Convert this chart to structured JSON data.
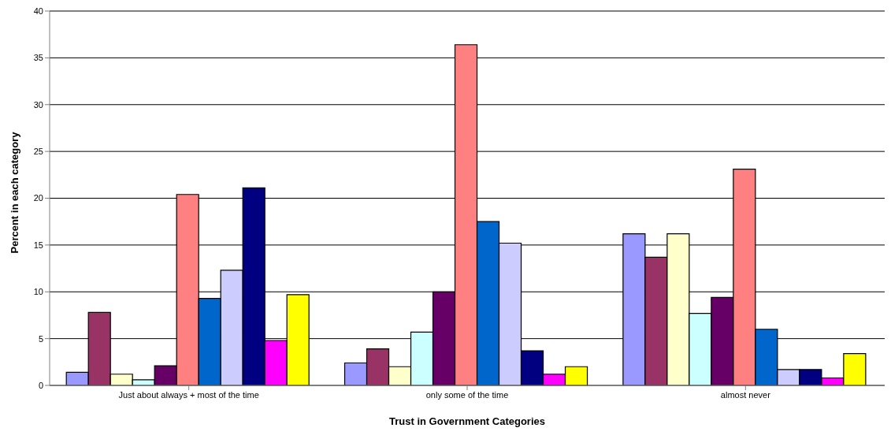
{
  "chart_data": {
    "type": "bar",
    "xlabel": "Trust in Government Categories",
    "ylabel": "Percent in each category",
    "categories": [
      "Just about always + most of the time",
      "only some of the time",
      "almost never"
    ],
    "series": [
      {
        "color": "#9999ff",
        "values": [
          1.4,
          2.4,
          16.2
        ]
      },
      {
        "color": "#993366",
        "values": [
          7.8,
          3.9,
          13.7
        ]
      },
      {
        "color": "#ffffcc",
        "values": [
          1.2,
          2.0,
          16.2
        ]
      },
      {
        "color": "#ccffff",
        "values": [
          0.6,
          5.7,
          7.7
        ]
      },
      {
        "color": "#660066",
        "values": [
          2.1,
          10.0,
          9.4
        ]
      },
      {
        "color": "#ff8080",
        "values": [
          20.4,
          36.4,
          23.1
        ]
      },
      {
        "color": "#0066cc",
        "values": [
          9.3,
          17.5,
          6.0
        ]
      },
      {
        "color": "#ccccff",
        "values": [
          12.3,
          15.2,
          1.7
        ]
      },
      {
        "color": "#000080",
        "values": [
          21.1,
          3.7,
          1.7
        ]
      },
      {
        "color": "#ff00ff",
        "values": [
          4.8,
          1.2,
          0.8
        ]
      },
      {
        "color": "#ffff00",
        "values": [
          9.7,
          2.0,
          3.4
        ]
      }
    ],
    "ylim": [
      0,
      40
    ],
    "yticks": [
      0,
      5,
      10,
      15,
      20,
      25,
      30,
      35,
      40
    ],
    "grid": "y",
    "legend": false
  }
}
